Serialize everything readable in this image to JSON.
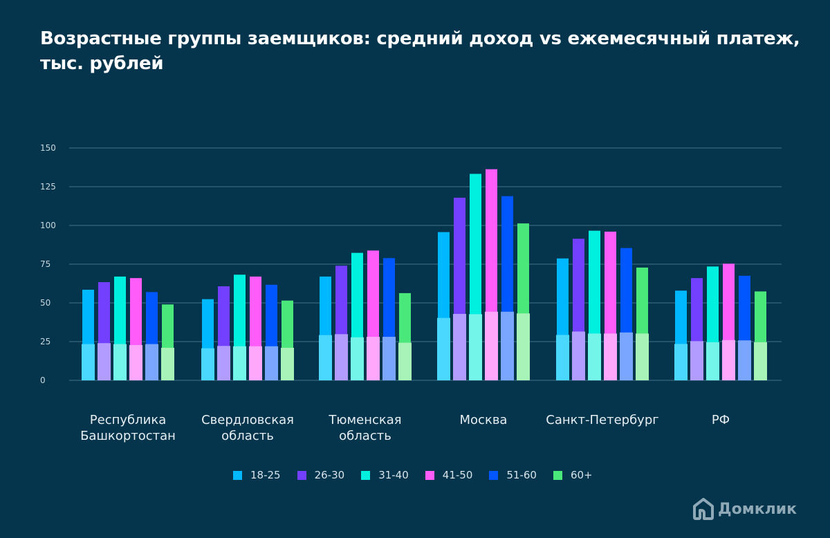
{
  "title": "Возрастные группы заемщиков: средний доход vs ежемесячный платеж, тыс. рублей",
  "chart_data": {
    "type": "bar",
    "title": "Возрастные группы заемщиков: средний доход vs ежемесячный платеж, тыс. рублей",
    "categories": [
      "Республика Башкортостан",
      "Свердловская область",
      "Тюменская область",
      "Москва",
      "Санкт-Петербург",
      "РФ"
    ],
    "ylim": [
      0,
      150
    ],
    "yticks": [
      "0",
      "25",
      "50",
      "75",
      "100",
      "125",
      "150"
    ],
    "grid": true,
    "legend_position": "bottom",
    "series": [
      {
        "name": "18-25",
        "color": "#00b8ff",
        "payment_color": "#4ad8ff",
        "income": [
          58.5,
          52.4,
          67,
          95.7,
          78.7,
          57.9
        ],
        "payment": [
          23.4,
          20.7,
          29.2,
          40.3,
          29.3,
          23.5
        ]
      },
      {
        "name": "26-30",
        "color": "#7340ff",
        "payment_color": "#b39cff",
        "income": [
          63.4,
          60.7,
          74,
          117.9,
          91.4,
          66
        ],
        "payment": [
          24,
          22.2,
          29.8,
          42.9,
          31.5,
          25.3
        ]
      },
      {
        "name": "31-40",
        "color": "#00f0e0",
        "payment_color": "#74f5ea",
        "income": [
          67,
          68.2,
          82.3,
          133.3,
          96.6,
          73.5
        ],
        "payment": [
          23.4,
          22,
          27.8,
          42.7,
          30.2,
          24.6
        ]
      },
      {
        "name": "41-50",
        "color": "#ff5cf9",
        "payment_color": "#ffa8fb",
        "income": [
          66,
          67,
          83.8,
          136.3,
          96,
          75.3
        ],
        "payment": [
          22.8,
          22,
          28.1,
          44.3,
          30.2,
          26
        ]
      },
      {
        "name": "51-60",
        "color": "#0057ff",
        "payment_color": "#7ba6ff",
        "income": [
          57,
          61.7,
          78.9,
          118.9,
          85.4,
          67.5
        ],
        "payment": [
          23.4,
          22,
          28.1,
          44.3,
          30.9,
          25.8
        ]
      },
      {
        "name": "60+",
        "color": "#4ae87a",
        "payment_color": "#a8f3b7",
        "income": [
          49,
          51.5,
          56.3,
          101.3,
          72.8,
          57.4
        ],
        "payment": [
          21,
          21,
          24.3,
          43.2,
          30.2,
          24.6
        ]
      }
    ]
  },
  "labels": {
    "cat0": [
      "Республика",
      "Башкортостан"
    ],
    "cat1": [
      "Свердловская",
      "область"
    ],
    "cat2": [
      "Тюменская",
      "область"
    ],
    "cat3": [
      "Москва",
      ""
    ],
    "cat4": [
      "Санкт-Петербург",
      ""
    ],
    "cat5": [
      "РФ",
      ""
    ]
  },
  "logo": {
    "text": "Домклик",
    "icon": "house-icon"
  },
  "colors": {
    "background": "#04354d",
    "grid": "#2f5f74"
  }
}
